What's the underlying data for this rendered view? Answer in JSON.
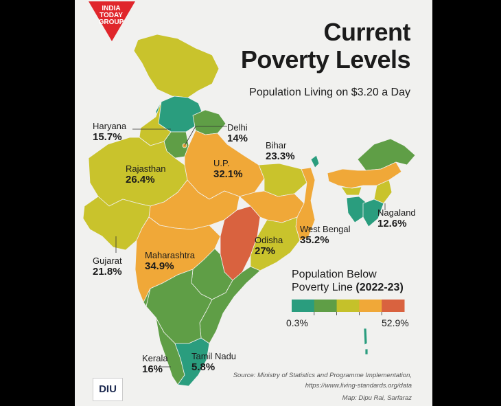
{
  "title_line1": "Current",
  "title_line2": "Poverty Levels",
  "subtitle": "Population Living on $3.20 a Day",
  "logo": {
    "line1": "INDIA",
    "line2": "TODAY",
    "line3": "GROUP",
    "color": "#e0262b"
  },
  "brand_logo": "DIU",
  "states": [
    {
      "name": "Haryana",
      "value": "15.7%"
    },
    {
      "name": "Delhi",
      "value": "14%"
    },
    {
      "name": "Bihar",
      "value": "23.3%"
    },
    {
      "name": "Rajasthan",
      "value": "26.4%"
    },
    {
      "name": "U.P.",
      "value": "32.1%"
    },
    {
      "name": "Nagaland",
      "value": "12.6%"
    },
    {
      "name": "West Bengal",
      "value": "35.2%"
    },
    {
      "name": "Odisha",
      "value": "27%"
    },
    {
      "name": "Gujarat",
      "value": "21.8%"
    },
    {
      "name": "Maharashtra",
      "value": "34.9%"
    },
    {
      "name": "Kerala",
      "value": "16%"
    },
    {
      "name": "Tamil Nadu",
      "value": "5.8%"
    }
  ],
  "legend": {
    "title_line1": "Population Below",
    "title_line2": "Poverty Line",
    "year": "(2022-23)",
    "min": "0.3%",
    "max": "52.9%",
    "colors": [
      "#2a9d7e",
      "#5f9e46",
      "#c5c12a",
      "#f0a838",
      "#d9623f"
    ]
  },
  "source": {
    "line1": "Source: Ministry of Statistics and Programme Implementation,",
    "line2": "https://www.living-standards.org/data",
    "line3": "Map: Dipu Rai, Sarfaraz"
  },
  "palette": {
    "teal": "#2a9d7e",
    "green": "#5f9e46",
    "olive": "#a8b53a",
    "yellow": "#c9c32c",
    "orange": "#f0a838",
    "red": "#d9623f",
    "background": "#f1f1ef"
  }
}
